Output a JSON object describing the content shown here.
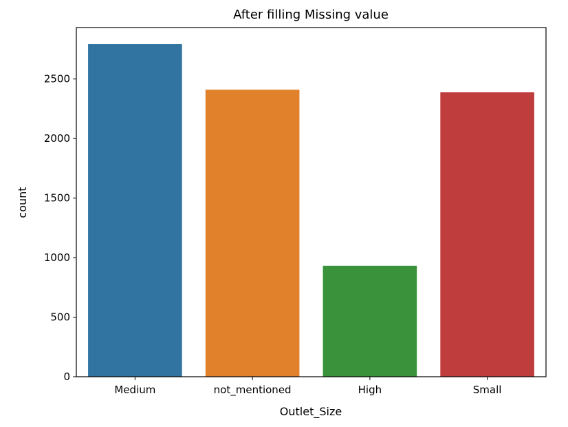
{
  "chart_data": {
    "type": "bar",
    "title": "After filling Missing value",
    "xlabel": "Outlet_Size",
    "ylabel": "count",
    "categories": [
      "Medium",
      "not_mentioned",
      "High",
      "Small"
    ],
    "values": [
      2793,
      2410,
      932,
      2388
    ],
    "colors": [
      "#3274a1",
      "#e1812c",
      "#3a923a",
      "#c03d3e"
    ],
    "ylim": [
      0,
      2932
    ],
    "yticks": [
      0,
      500,
      1000,
      1500,
      2000,
      2500
    ],
    "grid": false,
    "legend": "none"
  }
}
